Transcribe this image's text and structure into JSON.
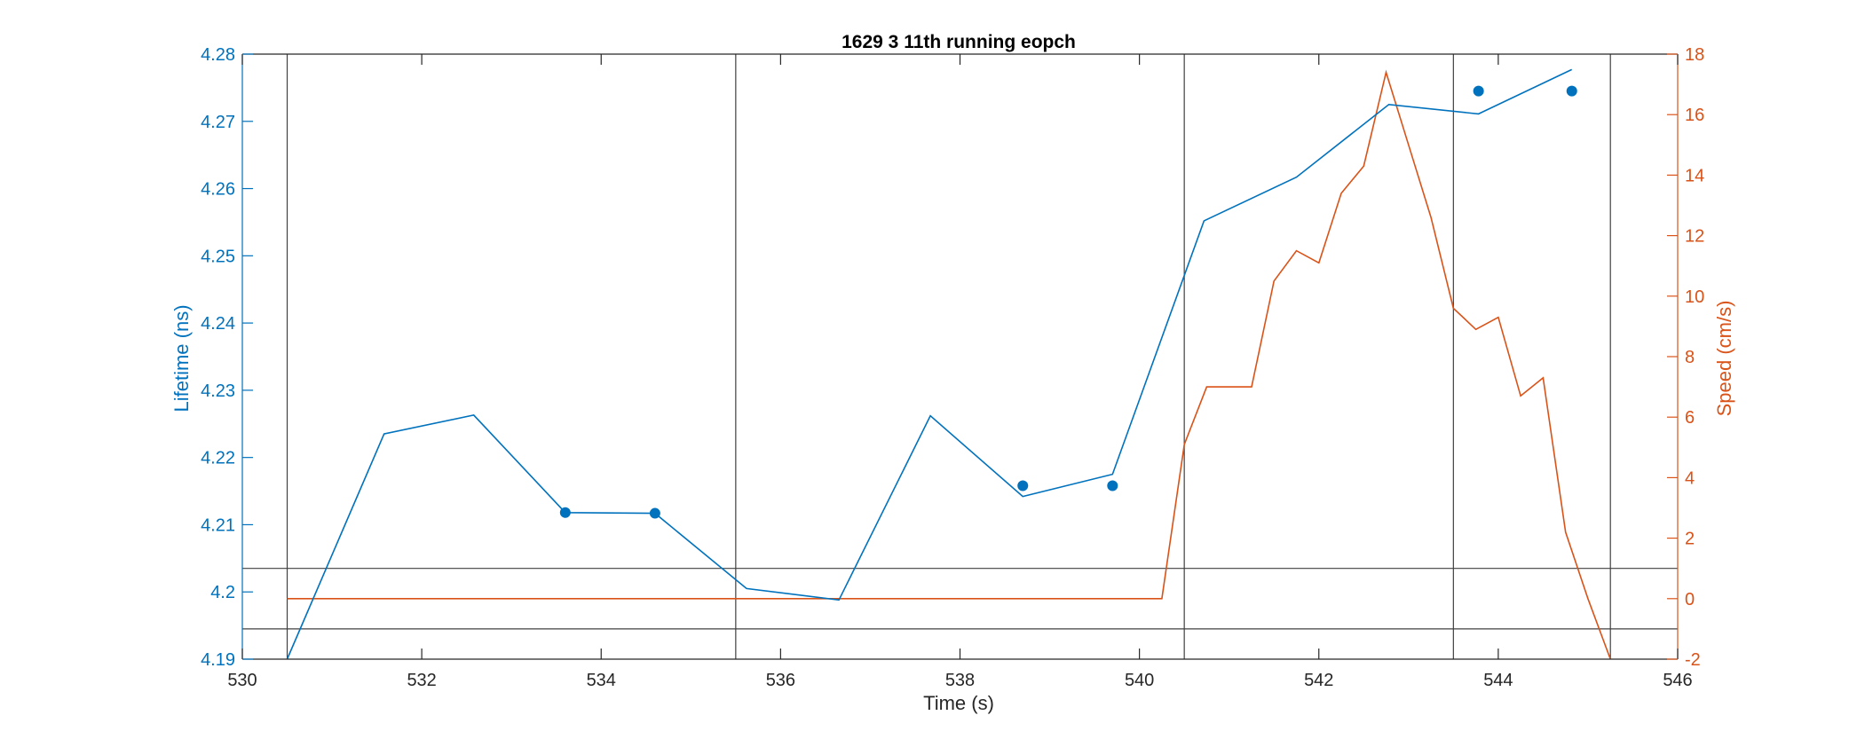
{
  "chart_data": {
    "type": "line",
    "title": "1629 3 11th running eopch",
    "xlabel": "Time (s)",
    "ylabel_left": "Lifetime (ns)",
    "ylabel_right": "Speed (cm/s)",
    "xlim": [
      530,
      546
    ],
    "ylim_left": [
      4.19,
      4.28
    ],
    "ylim_right": [
      -2,
      18
    ],
    "xticks": [
      "530",
      "532",
      "534",
      "536",
      "538",
      "540",
      "542",
      "544",
      "546"
    ],
    "yticks_left": [
      "4.19",
      "4.2",
      "4.21",
      "4.22",
      "4.23",
      "4.24",
      "4.25",
      "4.26",
      "4.27",
      "4.28"
    ],
    "yticks_right": [
      "-2",
      "0",
      "2",
      "4",
      "6",
      "8",
      "10",
      "12",
      "14",
      "16",
      "18"
    ],
    "colors": {
      "left": "#0072BD",
      "right": "#D95319",
      "reference": "#404040"
    },
    "lifetime_line": {
      "x": [
        530.5,
        531.58,
        532.58,
        533.6,
        534.6,
        535.62,
        536.65,
        537.67,
        538.7,
        539.7,
        540.72,
        541.75,
        542.78,
        543.78,
        544.82
      ],
      "y": [
        4.19,
        4.2235,
        4.2263,
        4.2118,
        4.2117,
        4.2005,
        4.1988,
        4.2262,
        4.2142,
        4.2175,
        4.2552,
        4.2617,
        4.2725,
        4.2711,
        4.2777
      ]
    },
    "lifetime_points": {
      "x": [
        533.6,
        534.6,
        538.7,
        539.7,
        543.78,
        544.82
      ],
      "y": [
        4.2118,
        4.2117,
        4.2158,
        4.2158,
        4.2745,
        4.2745
      ]
    },
    "speed_line": {
      "x": [
        530.5,
        531.0,
        532.0,
        533.0,
        534.0,
        535.0,
        536.0,
        537.0,
        538.0,
        539.0,
        540.0,
        540.25,
        540.5,
        540.75,
        541.0,
        541.25,
        541.5,
        541.75,
        542.0,
        542.25,
        542.5,
        542.75,
        543.0,
        543.25,
        543.5,
        543.75,
        544.0,
        544.25,
        544.5,
        544.75,
        545.0,
        545.25
      ],
      "y": [
        0,
        0,
        0,
        0,
        0,
        0,
        0,
        0,
        0,
        0,
        0,
        0,
        5.1,
        7.0,
        7.0,
        7.0,
        10.5,
        11.5,
        11.1,
        13.4,
        14.3,
        17.4,
        15.0,
        12.6,
        9.6,
        8.9,
        9.3,
        6.7,
        7.3,
        2.2,
        0,
        -2.0
      ]
    },
    "vertical_reference_lines_x": [
      530.5,
      535.5,
      540.5,
      543.5,
      545.25
    ],
    "horizontal_reference_lines_right": [
      1.0,
      -1.0
    ],
    "grid": false,
    "legend": "none"
  }
}
